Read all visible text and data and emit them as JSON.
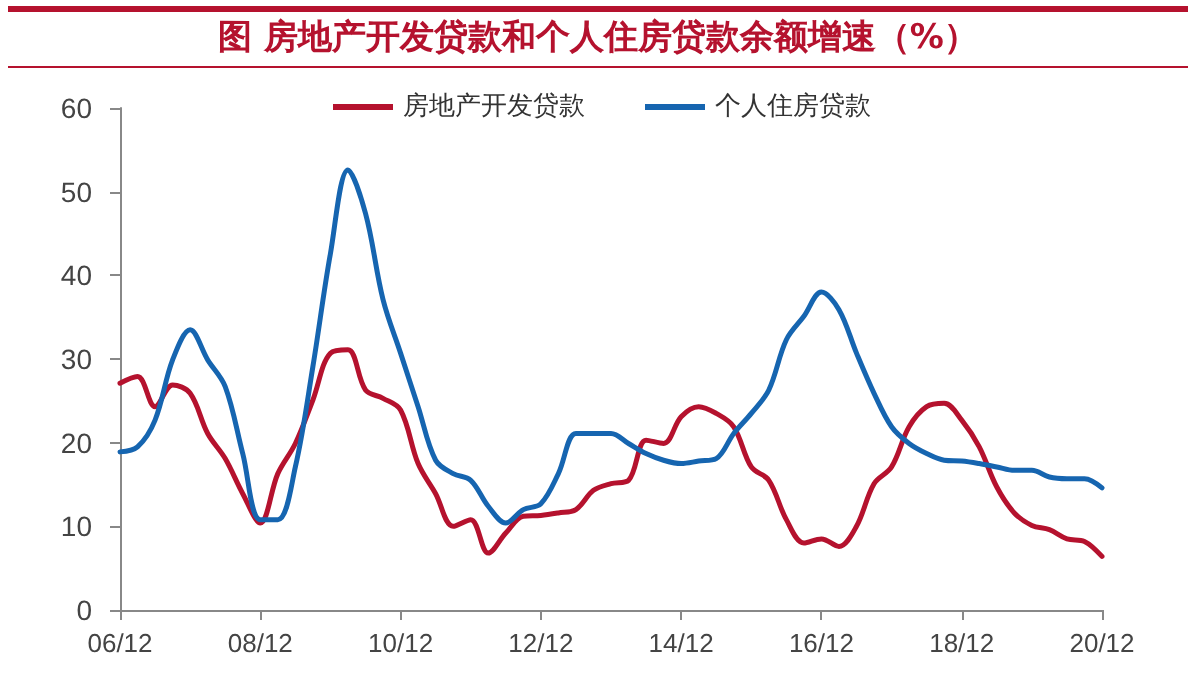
{
  "chart_data": {
    "type": "line",
    "title": "图  房地产开发贷款和个人住房贷款余额增速（%）",
    "categories": [
      "06/12",
      null,
      null,
      null,
      null,
      null,
      null,
      null,
      "08/12",
      null,
      null,
      null,
      null,
      null,
      null,
      null,
      "10/12",
      null,
      null,
      null,
      null,
      null,
      null,
      null,
      "12/12",
      null,
      null,
      null,
      null,
      null,
      null,
      null,
      "14/12",
      null,
      null,
      null,
      null,
      null,
      null,
      null,
      "16/12",
      null,
      null,
      null,
      null,
      null,
      null,
      null,
      "18/12",
      null,
      null,
      null,
      null,
      null,
      null,
      null,
      "20/12"
    ],
    "series": [
      {
        "name": "房地产开发贷款",
        "color": "#b5122e",
        "values": [
          27.1,
          27.9,
          24.3,
          26.9,
          25.9,
          21.1,
          18.1,
          13.9,
          10.4,
          16.3,
          19.9,
          25.1,
          30.7,
          31.1,
          26.3,
          25.3,
          23.9,
          17.5,
          13.9,
          10.0,
          10.8,
          6.8,
          9.2,
          11.2,
          11.3,
          11.6,
          12.0,
          14.3,
          15.1,
          15.5,
          20.3,
          19.9,
          23.1,
          24.3,
          23.5,
          21.9,
          17.1,
          15.5,
          10.8,
          8.0,
          8.5,
          7.6,
          10.0,
          15.1,
          17.1,
          21.9,
          24.3,
          24.7,
          22.7,
          19.5,
          14.7,
          11.6,
          10.1,
          9.6,
          8.5,
          8.2,
          6.4
        ]
      },
      {
        "name": "个人住房贷款",
        "color": "#1665b0",
        "values": [
          18.9,
          19.5,
          22.7,
          29.9,
          33.5,
          29.9,
          26.7,
          18.7,
          10.8,
          10.8,
          17.1,
          29.1,
          42.6,
          52.6,
          47.4,
          37.1,
          30.7,
          24.3,
          17.9,
          16.3,
          15.5,
          12.4,
          10.4,
          12.0,
          12.7,
          16.3,
          21.1,
          21.1,
          21.1,
          19.9,
          18.7,
          17.9,
          17.5,
          17.8,
          18.1,
          21.1,
          23.5,
          26.3,
          32.3,
          35.1,
          38.0,
          35.9,
          30.7,
          25.9,
          21.9,
          19.9,
          18.7,
          17.9,
          17.8,
          17.5,
          17.1,
          16.7,
          16.7,
          15.9,
          15.7,
          15.7,
          14.6
        ]
      }
    ],
    "ylim": [
      0,
      60
    ],
    "yticks": [
      0,
      10,
      20,
      30,
      40,
      50,
      60
    ],
    "grid": false,
    "legend": "top",
    "marker": "none",
    "line_style": "solid"
  }
}
